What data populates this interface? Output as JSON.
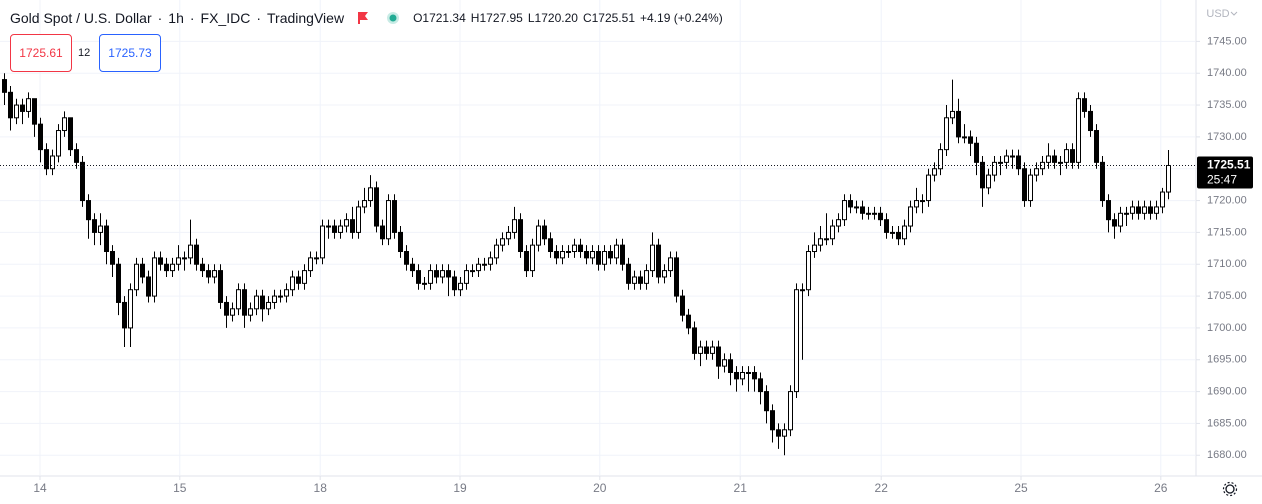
{
  "chart_data": {
    "type": "candlestick",
    "symbol": "Gold Spot / U.S. Dollar",
    "interval": "1h",
    "source": "FX_IDC",
    "platform": "TradingView",
    "ohlc_legend": [
      "O",
      "H",
      "L",
      "C"
    ],
    "ohlc_value_labels": [
      "1721.34",
      "1727.95",
      "1720.20",
      "1725.51"
    ],
    "change_label": "+4.19 (+0.24%)",
    "sell_price": 1725.61,
    "spread": 12,
    "buy_price": 1725.73,
    "currency": "USD",
    "countdown": "25:47",
    "up_color": "#ffffff",
    "down_color": "#000000",
    "border_color": "#000000",
    "grid": true,
    "xlim": [
      -0.667,
      198.5
    ],
    "xticks": [
      {
        "value": 6,
        "label": "14"
      },
      {
        "value": 29.3,
        "label": "15"
      },
      {
        "value": 52.7,
        "label": "18"
      },
      {
        "value": 76,
        "label": "19"
      },
      {
        "value": 99.3,
        "label": "20"
      },
      {
        "value": 122.7,
        "label": "21"
      },
      {
        "value": 146.2,
        "label": "22"
      },
      {
        "value": 169.5,
        "label": "25"
      },
      {
        "value": 192.8,
        "label": "26"
      }
    ],
    "ylim": [
      1676.9,
      1751.5
    ],
    "yticks": [
      {
        "value": 1680,
        "label": "1680.00"
      },
      {
        "value": 1685,
        "label": "1685.00"
      },
      {
        "value": 1690,
        "label": "1690.00"
      },
      {
        "value": 1695,
        "label": "1695.00"
      },
      {
        "value": 1700,
        "label": "1700.00"
      },
      {
        "value": 1705,
        "label": "1705.00"
      },
      {
        "value": 1710,
        "label": "1710.00"
      },
      {
        "value": 1715,
        "label": "1715.00"
      },
      {
        "value": 1720,
        "label": "1720.00"
      },
      {
        "value": 1725,
        "label": "1725.00"
      },
      {
        "value": 1730,
        "label": "1730.00"
      },
      {
        "value": 1735,
        "label": "1735.00"
      },
      {
        "value": 1740,
        "label": "1740.00"
      },
      {
        "value": 1745,
        "label": "1745.00"
      }
    ],
    "candles": [
      [
        1739,
        1740,
        1735,
        1737
      ],
      [
        1737,
        1738,
        1731,
        1733
      ],
      [
        1733,
        1736,
        1732,
        1735
      ],
      [
        1735,
        1736,
        1732,
        1734
      ],
      [
        1734,
        1737,
        1733,
        1736
      ],
      [
        1736,
        1736,
        1730,
        1732
      ],
      [
        1732,
        1733,
        1726,
        1728
      ],
      [
        1728,
        1729,
        1724,
        1725
      ],
      [
        1725,
        1728,
        1724,
        1727
      ],
      [
        1727,
        1732,
        1726,
        1731
      ],
      [
        1731,
        1734,
        1730,
        1733
      ],
      [
        1733,
        1733,
        1727,
        1728
      ],
      [
        1728,
        1729,
        1725,
        1726
      ],
      [
        1726,
        1727,
        1719,
        1720
      ],
      [
        1720,
        1721,
        1714,
        1717
      ],
      [
        1717,
        1718,
        1713,
        1715
      ],
      [
        1715,
        1718,
        1713,
        1716
      ],
      [
        1716,
        1717,
        1710,
        1712
      ],
      [
        1712,
        1713,
        1708,
        1710
      ],
      [
        1710,
        1711,
        1702,
        1704
      ],
      [
        1704,
        1705,
        1697,
        1700
      ],
      [
        1700,
        1707,
        1697,
        1706
      ],
      [
        1706,
        1711,
        1705,
        1710
      ],
      [
        1710,
        1711,
        1707,
        1708
      ],
      [
        1708,
        1709,
        1704,
        1705
      ],
      [
        1705,
        1712,
        1704,
        1711
      ],
      [
        1711,
        1712,
        1709,
        1710
      ],
      [
        1710,
        1711,
        1708,
        1709
      ],
      [
        1709,
        1711,
        1708,
        1710
      ],
      [
        1710,
        1713,
        1709,
        1711
      ],
      [
        1711,
        1712,
        1709,
        1711
      ],
      [
        1711,
        1717,
        1710,
        1713
      ],
      [
        1713,
        1714,
        1709,
        1710
      ],
      [
        1710,
        1711,
        1708,
        1709
      ],
      [
        1709,
        1710,
        1707,
        1708
      ],
      [
        1708,
        1710,
        1707,
        1709
      ],
      [
        1709,
        1710,
        1703,
        1704
      ],
      [
        1704,
        1705,
        1700,
        1702
      ],
      [
        1702,
        1704,
        1701,
        1703
      ],
      [
        1703,
        1707,
        1702,
        1706
      ],
      [
        1706,
        1707,
        1700,
        1702
      ],
      [
        1702,
        1704,
        1701,
        1703
      ],
      [
        1703,
        1706,
        1702,
        1705
      ],
      [
        1705,
        1706,
        1701,
        1703
      ],
      [
        1703,
        1705,
        1702,
        1704
      ],
      [
        1704,
        1706,
        1703,
        1705
      ],
      [
        1705,
        1706,
        1704,
        1705
      ],
      [
        1705,
        1707,
        1704,
        1706
      ],
      [
        1706,
        1709,
        1705,
        1708
      ],
      [
        1708,
        1709,
        1706,
        1707
      ],
      [
        1707,
        1710,
        1706,
        1709
      ],
      [
        1709,
        1712,
        1708,
        1711
      ],
      [
        1711,
        1712,
        1710,
        1711
      ],
      [
        1711,
        1717,
        1710,
        1716
      ],
      [
        1716,
        1717,
        1714,
        1716
      ],
      [
        1716,
        1717,
        1714,
        1715
      ],
      [
        1715,
        1717,
        1714,
        1716
      ],
      [
        1716,
        1718,
        1715,
        1717
      ],
      [
        1717,
        1719,
        1714,
        1715
      ],
      [
        1715,
        1720,
        1714,
        1719
      ],
      [
        1719,
        1722,
        1718,
        1720
      ],
      [
        1720,
        1724,
        1719,
        1722
      ],
      [
        1722,
        1723,
        1715,
        1716
      ],
      [
        1716,
        1717,
        1713,
        1714
      ],
      [
        1714,
        1721,
        1713,
        1720
      ],
      [
        1720,
        1721,
        1714,
        1715
      ],
      [
        1715,
        1716,
        1711,
        1712
      ],
      [
        1712,
        1713,
        1709,
        1710
      ],
      [
        1710,
        1711,
        1708,
        1709
      ],
      [
        1709,
        1710,
        1706,
        1707
      ],
      [
        1707,
        1708,
        1706,
        1707
      ],
      [
        1707,
        1710,
        1706,
        1709
      ],
      [
        1709,
        1710,
        1707,
        1708
      ],
      [
        1708,
        1710,
        1707,
        1709
      ],
      [
        1709,
        1710,
        1705,
        1708
      ],
      [
        1708,
        1709,
        1705,
        1706
      ],
      [
        1706,
        1708,
        1705,
        1707
      ],
      [
        1707,
        1710,
        1706,
        1709
      ],
      [
        1709,
        1710,
        1708,
        1709
      ],
      [
        1709,
        1711,
        1708,
        1710
      ],
      [
        1710,
        1711,
        1709,
        1710
      ],
      [
        1710,
        1712,
        1709,
        1711
      ],
      [
        1711,
        1714,
        1710,
        1713
      ],
      [
        1713,
        1715,
        1712,
        1714
      ],
      [
        1714,
        1716,
        1713,
        1715
      ],
      [
        1715,
        1719,
        1714,
        1717
      ],
      [
        1717,
        1718,
        1711,
        1712
      ],
      [
        1712,
        1713,
        1708,
        1709
      ],
      [
        1709,
        1714,
        1708,
        1713
      ],
      [
        1713,
        1717,
        1712,
        1716
      ],
      [
        1716,
        1717,
        1713,
        1714
      ],
      [
        1714,
        1715,
        1711,
        1712
      ],
      [
        1712,
        1713,
        1710,
        1711
      ],
      [
        1711,
        1713,
        1710,
        1712
      ],
      [
        1712,
        1713,
        1711,
        1712
      ],
      [
        1712,
        1714,
        1711,
        1713
      ],
      [
        1713,
        1714,
        1711,
        1712
      ],
      [
        1712,
        1713,
        1710,
        1711
      ],
      [
        1711,
        1713,
        1710,
        1712
      ],
      [
        1712,
        1713,
        1709,
        1710
      ],
      [
        1710,
        1713,
        1709,
        1712
      ],
      [
        1712,
        1713,
        1710,
        1711
      ],
      [
        1711,
        1714,
        1710,
        1713
      ],
      [
        1713,
        1714,
        1709,
        1710
      ],
      [
        1710,
        1711,
        1706,
        1707
      ],
      [
        1707,
        1709,
        1706,
        1708
      ],
      [
        1708,
        1709,
        1706,
        1707
      ],
      [
        1707,
        1710,
        1706,
        1709
      ],
      [
        1709,
        1715,
        1708,
        1713
      ],
      [
        1713,
        1714,
        1707,
        1708
      ],
      [
        1708,
        1710,
        1707,
        1709
      ],
      [
        1709,
        1712,
        1708,
        1711
      ],
      [
        1711,
        1712,
        1704,
        1705
      ],
      [
        1705,
        1706,
        1701,
        1702
      ],
      [
        1702,
        1703,
        1699,
        1700
      ],
      [
        1700,
        1701,
        1695,
        1696
      ],
      [
        1696,
        1698,
        1694,
        1697
      ],
      [
        1697,
        1698,
        1695,
        1696
      ],
      [
        1696,
        1698,
        1695,
        1697
      ],
      [
        1697,
        1698,
        1692,
        1694
      ],
      [
        1694,
        1696,
        1693,
        1695
      ],
      [
        1695,
        1696,
        1691,
        1693
      ],
      [
        1693,
        1694,
        1690,
        1692
      ],
      [
        1692,
        1694,
        1691,
        1693
      ],
      [
        1693,
        1694,
        1690,
        1693
      ],
      [
        1693,
        1694,
        1690,
        1692
      ],
      [
        1692,
        1693,
        1688,
        1690
      ],
      [
        1690,
        1691,
        1685,
        1687
      ],
      [
        1687,
        1688,
        1682,
        1684
      ],
      [
        1684,
        1685,
        1681,
        1683
      ],
      [
        1683,
        1685,
        1680,
        1684
      ],
      [
        1684,
        1691,
        1683,
        1690
      ],
      [
        1690,
        1707,
        1689,
        1706
      ],
      [
        1706,
        1707,
        1695,
        1706
      ],
      [
        1706,
        1713,
        1705,
        1712
      ],
      [
        1712,
        1715,
        1711,
        1713
      ],
      [
        1713,
        1716,
        1712,
        1714
      ],
      [
        1714,
        1718,
        1713,
        1714
      ],
      [
        1714,
        1717,
        1713,
        1716
      ],
      [
        1716,
        1718,
        1715,
        1717
      ],
      [
        1717,
        1721,
        1716,
        1720
      ],
      [
        1720,
        1721,
        1718,
        1719
      ],
      [
        1719,
        1720,
        1718,
        1719
      ],
      [
        1719,
        1720,
        1717,
        1718
      ],
      [
        1718,
        1719,
        1717,
        1718
      ],
      [
        1718,
        1719,
        1717,
        1718
      ],
      [
        1718,
        1719,
        1716,
        1717
      ],
      [
        1717,
        1718,
        1714,
        1715
      ],
      [
        1715,
        1716,
        1714,
        1715
      ],
      [
        1715,
        1716,
        1713,
        1714
      ],
      [
        1714,
        1717,
        1713,
        1716
      ],
      [
        1716,
        1720,
        1715,
        1719
      ],
      [
        1719,
        1722,
        1718,
        1720
      ],
      [
        1720,
        1721,
        1718,
        1720
      ],
      [
        1720,
        1725,
        1719,
        1724
      ],
      [
        1724,
        1726,
        1723,
        1725
      ],
      [
        1725,
        1729,
        1724,
        1728
      ],
      [
        1728,
        1735,
        1727,
        1733
      ],
      [
        1733,
        1739,
        1732,
        1734
      ],
      [
        1734,
        1736,
        1729,
        1730
      ],
      [
        1730,
        1732,
        1729,
        1730
      ],
      [
        1730,
        1731,
        1727,
        1729
      ],
      [
        1729,
        1730,
        1724,
        1726
      ],
      [
        1726,
        1727,
        1719,
        1722
      ],
      [
        1722,
        1725,
        1721,
        1724
      ],
      [
        1724,
        1727,
        1723,
        1726
      ],
      [
        1726,
        1727,
        1724,
        1726
      ],
      [
        1726,
        1728,
        1725,
        1727
      ],
      [
        1727,
        1728,
        1725,
        1727
      ],
      [
        1727,
        1728,
        1724,
        1725
      ],
      [
        1725,
        1726,
        1719,
        1720
      ],
      [
        1720,
        1725,
        1719,
        1724
      ],
      [
        1724,
        1726,
        1723,
        1725
      ],
      [
        1725,
        1727,
        1724,
        1726
      ],
      [
        1726,
        1729,
        1725,
        1727
      ],
      [
        1727,
        1728,
        1725,
        1726
      ],
      [
        1726,
        1727,
        1724,
        1726
      ],
      [
        1726,
        1729,
        1725,
        1728
      ],
      [
        1728,
        1729,
        1725,
        1726
      ],
      [
        1726,
        1737,
        1725,
        1736
      ],
      [
        1736,
        1737,
        1733,
        1734
      ],
      [
        1734,
        1735,
        1730,
        1731
      ],
      [
        1731,
        1732,
        1725,
        1726
      ],
      [
        1726,
        1727,
        1719,
        1720
      ],
      [
        1720,
        1721,
        1715,
        1717
      ],
      [
        1717,
        1718,
        1714,
        1716
      ],
      [
        1716,
        1719,
        1715,
        1718
      ],
      [
        1718,
        1719,
        1716,
        1718
      ],
      [
        1718,
        1720,
        1717,
        1719
      ],
      [
        1719,
        1720,
        1717,
        1718
      ],
      [
        1718,
        1720,
        1717,
        1719
      ],
      [
        1719,
        1720,
        1717,
        1718
      ],
      [
        1718,
        1720,
        1717,
        1719
      ],
      [
        1719,
        1722,
        1718,
        1721.34
      ],
      [
        1721.34,
        1727.95,
        1720.2,
        1725.51
      ]
    ]
  }
}
